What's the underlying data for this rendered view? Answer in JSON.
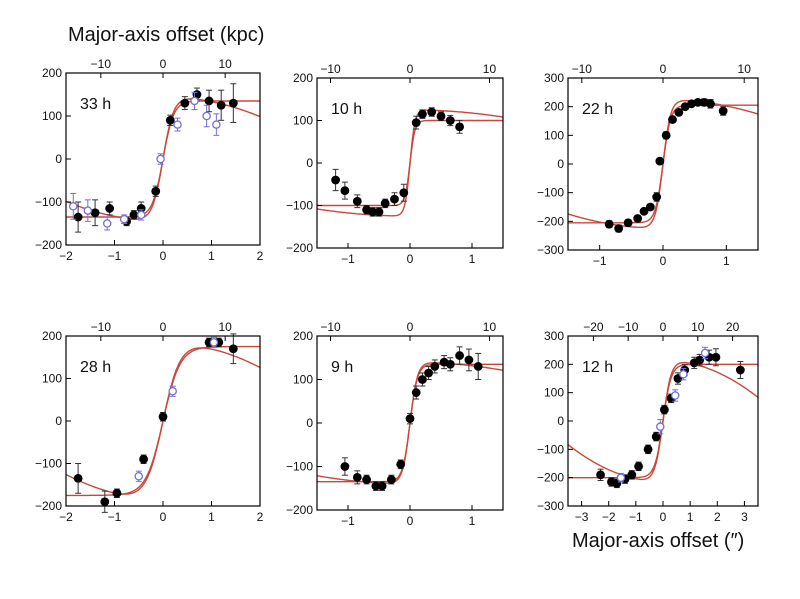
{
  "figure": {
    "top_axis_label": "Major-axis offset (kpc)",
    "bottom_axis_label": "Major-axis offset (″)",
    "colors": {
      "model": "#c9483c",
      "filled": "#000000",
      "open": "#6f6fd8",
      "axes": "#000000"
    }
  },
  "chart_data": [
    {
      "type": "scatter",
      "title": "33 h",
      "xlim": [
        -2,
        2
      ],
      "ylim": [
        -200,
        200
      ],
      "xticks": [
        -2,
        -1,
        0,
        1,
        2
      ],
      "yticks": [
        -200,
        -100,
        0,
        100,
        200
      ],
      "top_ticks": [
        -10,
        0,
        10
      ],
      "top_scale": 7.8,
      "series": [
        {
          "style": "filled",
          "x": [
            -1.75,
            -1.4,
            -1.1,
            -0.75,
            -0.6,
            -0.45,
            -0.15,
            0.15,
            0.45,
            0.7,
            0.95,
            1.2,
            1.45
          ],
          "y": [
            -135,
            -125,
            -115,
            -145,
            -130,
            -115,
            -75,
            90,
            130,
            150,
            135,
            125,
            130
          ],
          "err": [
            35,
            30,
            15,
            10,
            10,
            15,
            12,
            12,
            15,
            15,
            25,
            35,
            45
          ]
        },
        {
          "style": "open",
          "x": [
            -1.85,
            -1.55,
            -1.15,
            -0.8,
            -0.45,
            -0.05,
            0.3,
            0.65,
            0.9,
            1.1
          ],
          "y": [
            -110,
            -120,
            -150,
            -140,
            -130,
            0,
            80,
            135,
            100,
            80
          ],
          "err": [
            30,
            25,
            15,
            10,
            12,
            12,
            15,
            20,
            25,
            25
          ]
        }
      ],
      "models": [
        {
          "vmax": 135,
          "rt": 0.22,
          "drop": 0.0
        },
        {
          "vmax": 145,
          "rt": 0.22,
          "drop": 0.08
        }
      ]
    },
    {
      "type": "scatter",
      "title": "10 h",
      "xlim": [
        -1.5,
        1.5
      ],
      "ylim": [
        -200,
        200
      ],
      "xticks": [
        -1,
        0,
        1
      ],
      "yticks": [
        -200,
        -100,
        0,
        100,
        200
      ],
      "top_ticks": [
        -10,
        0,
        10
      ],
      "top_scale": 7.8,
      "series": [
        {
          "style": "filled",
          "x": [
            -1.2,
            -1.05,
            -0.85,
            -0.7,
            -0.6,
            -0.5,
            -0.4,
            -0.25,
            -0.1,
            0.1,
            0.2,
            0.35,
            0.5,
            0.65,
            0.8
          ],
          "y": [
            -40,
            -65,
            -90,
            -110,
            -115,
            -115,
            -95,
            -85,
            -70,
            95,
            115,
            120,
            110,
            100,
            85
          ],
          "err": [
            25,
            20,
            15,
            10,
            10,
            10,
            10,
            15,
            20,
            15,
            10,
            10,
            10,
            12,
            15
          ]
        }
      ],
      "models": [
        {
          "vmax": 100,
          "rt": 0.08,
          "drop": 0.0
        },
        {
          "vmax": 125,
          "rt": 0.08,
          "drop": 0.06
        }
      ]
    },
    {
      "type": "scatter",
      "title": "22 h",
      "xlim": [
        -1.5,
        1.5
      ],
      "ylim": [
        -300,
        300
      ],
      "xticks": [
        -1,
        0,
        1
      ],
      "yticks": [
        -300,
        -200,
        -100,
        0,
        100,
        200,
        300
      ],
      "top_ticks": [
        -10,
        0,
        10
      ],
      "top_scale": 7.8,
      "series": [
        {
          "style": "filled",
          "x": [
            -0.85,
            -0.7,
            -0.55,
            -0.4,
            -0.3,
            -0.2,
            -0.1,
            -0.05,
            0.05,
            0.15,
            0.25,
            0.35,
            0.45,
            0.55,
            0.65,
            0.75,
            0.95
          ],
          "y": [
            -210,
            -225,
            -205,
            -190,
            -165,
            -150,
            -115,
            10,
            100,
            155,
            180,
            200,
            210,
            215,
            215,
            210,
            185
          ],
          "err": [
            12,
            12,
            10,
            10,
            10,
            10,
            15,
            10,
            12,
            10,
            10,
            10,
            10,
            10,
            12,
            15,
            15
          ]
        }
      ],
      "models": [
        {
          "vmax": 205,
          "rt": 0.12,
          "drop": 0.0
        },
        {
          "vmax": 225,
          "rt": 0.12,
          "drop": 0.1
        }
      ]
    },
    {
      "type": "scatter",
      "title": "28 h",
      "xlim": [
        -2,
        2
      ],
      "ylim": [
        -200,
        200
      ],
      "xticks": [
        -2,
        -1,
        0,
        1,
        2
      ],
      "yticks": [
        -200,
        -100,
        0,
        100,
        200
      ],
      "top_ticks": [
        -10,
        0,
        10
      ],
      "top_scale": 7.8,
      "series": [
        {
          "style": "filled",
          "x": [
            -1.75,
            -1.2,
            -0.95,
            -0.4,
            0.0,
            0.95,
            1.15,
            1.45
          ],
          "y": [
            -135,
            -190,
            -170,
            -90,
            10,
            185,
            185,
            170
          ],
          "err": [
            35,
            25,
            10,
            10,
            10,
            10,
            10,
            35
          ]
        },
        {
          "style": "open",
          "x": [
            -0.5,
            0.2,
            1.05
          ],
          "y": [
            -130,
            70,
            185
          ],
          "err": [
            12,
            12,
            12
          ]
        }
      ],
      "models": [
        {
          "vmax": 175,
          "rt": 0.35,
          "drop": 0.0
        },
        {
          "vmax": 185,
          "rt": 0.35,
          "drop": 0.08
        }
      ]
    },
    {
      "type": "scatter",
      "title": "9 h",
      "xlim": [
        -1.5,
        1.5
      ],
      "ylim": [
        -200,
        200
      ],
      "xticks": [
        -1,
        0,
        1
      ],
      "yticks": [
        -200,
        -100,
        0,
        100,
        200
      ],
      "top_ticks": [
        -10,
        0,
        10
      ],
      "top_scale": 7.8,
      "series": [
        {
          "style": "filled",
          "x": [
            -1.05,
            -0.85,
            -0.7,
            -0.55,
            -0.45,
            -0.3,
            -0.15,
            0.0,
            0.1,
            0.2,
            0.3,
            0.4,
            0.55,
            0.65,
            0.8,
            0.95,
            1.1
          ],
          "y": [
            -100,
            -125,
            -130,
            -145,
            -145,
            -130,
            -95,
            10,
            70,
            100,
            115,
            130,
            140,
            135,
            155,
            145,
            130
          ],
          "err": [
            20,
            15,
            10,
            10,
            10,
            10,
            10,
            12,
            15,
            15,
            15,
            15,
            15,
            15,
            20,
            25,
            30
          ]
        }
      ],
      "models": [
        {
          "vmax": 135,
          "rt": 0.12,
          "drop": 0.0
        },
        {
          "vmax": 140,
          "rt": 0.12,
          "drop": 0.06
        }
      ]
    },
    {
      "type": "scatter",
      "title": "12 h",
      "xlim": [
        -3.5,
        3.5
      ],
      "ylim": [
        -300,
        300
      ],
      "xticks": [
        -3,
        -2,
        -1,
        0,
        1,
        2,
        3
      ],
      "yticks": [
        -300,
        -200,
        -100,
        0,
        100,
        200,
        300
      ],
      "top_ticks": [
        -20,
        -10,
        0,
        10,
        20
      ],
      "top_scale": 7.8,
      "series": [
        {
          "style": "filled",
          "x": [
            -2.3,
            -1.9,
            -1.7,
            -1.4,
            -1.15,
            -0.9,
            -0.55,
            -0.25,
            0.05,
            0.3,
            0.55,
            0.8,
            1.15,
            1.35,
            1.7,
            1.95,
            2.85
          ],
          "y": [
            -190,
            -215,
            -220,
            -205,
            -190,
            -160,
            -100,
            -55,
            40,
            80,
            150,
            180,
            205,
            215,
            225,
            225,
            180
          ],
          "err": [
            20,
            15,
            15,
            15,
            15,
            15,
            15,
            15,
            15,
            15,
            20,
            20,
            20,
            20,
            25,
            30,
            30
          ]
        },
        {
          "style": "open",
          "x": [
            -1.55,
            -0.1,
            0.45,
            0.75,
            1.55
          ],
          "y": [
            -200,
            -20,
            90,
            165,
            240
          ],
          "err": [
            15,
            25,
            20,
            20,
            20
          ]
        }
      ],
      "models": [
        {
          "vmax": 200,
          "rt": 0.3,
          "drop": 0.0
        },
        {
          "vmax": 215,
          "rt": 0.3,
          "drop": 0.05
        }
      ]
    }
  ]
}
